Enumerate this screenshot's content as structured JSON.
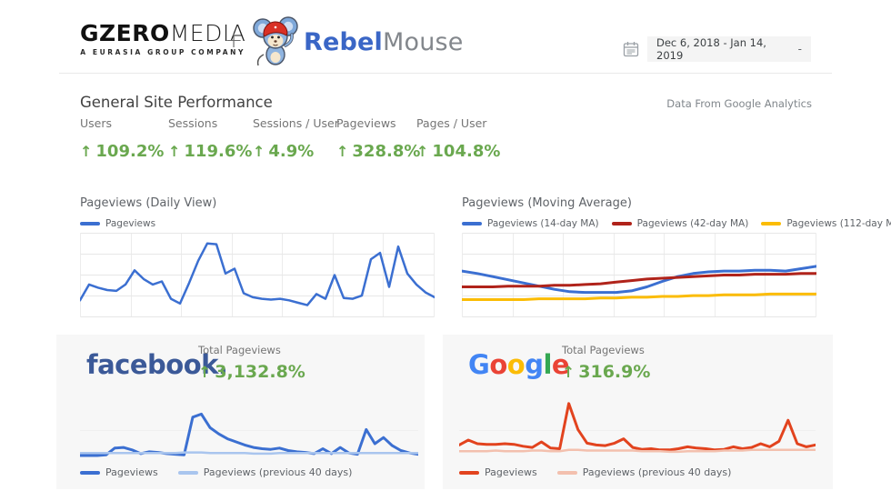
{
  "header": {
    "gzero_logo": {
      "bold": "GZERO",
      "light": "MEDIA",
      "subtitle": "A EURASIA GROUP COMPANY"
    },
    "plus_sign": "+",
    "rebelmouse_logo": {
      "bold": "Rebel",
      "light": "Mouse"
    },
    "date_picker": {
      "range": "Dec 6, 2018 - Jan 14, 2019",
      "dropdown_glyph": "-"
    }
  },
  "overview": {
    "title": "General Site Performance",
    "source_note": "Data From Google Analytics",
    "up_arrow": "↑",
    "positive_color": "#6aa84f",
    "metrics": [
      {
        "label": "Users",
        "value": "109.2%"
      },
      {
        "label": "Sessions",
        "value": "119.6%"
      },
      {
        "label": "Sessions / User",
        "value": "4.9%"
      },
      {
        "label": "Pageviews",
        "value": "328.8%"
      },
      {
        "label": "Pages / User",
        "value": "104.8%"
      }
    ]
  },
  "cards": {
    "facebook": {
      "logo_text": "facebook.",
      "logo_color": "#3b5998",
      "metric_label": "Total Pageviews",
      "metric_value": "3,132.8%"
    },
    "google": {
      "logo_letters": [
        {
          "ch": "G",
          "color": "#4285F4"
        },
        {
          "ch": "o",
          "color": "#EA4335"
        },
        {
          "ch": "o",
          "color": "#FBBC05"
        },
        {
          "ch": "g",
          "color": "#4285F4"
        },
        {
          "ch": "l",
          "color": "#34A853"
        },
        {
          "ch": "e",
          "color": "#EA4335"
        }
      ],
      "metric_label": "Total Pageviews",
      "metric_value": "316.9%"
    }
  },
  "chart_data": [
    {
      "id": "daily",
      "type": "line",
      "title": "Pageviews (Daily View)",
      "x_range": [
        "Dec 6, 2018",
        "Jan 14, 2019"
      ],
      "value_scale": "percent-of-plot-height (no axis labels shown)",
      "grid": {
        "cols": 7,
        "rows": 4
      },
      "legend_position": "top-left",
      "series": [
        {
          "name": "Pageviews",
          "color": "#3b6fd1",
          "width": 2.5,
          "values": [
            18,
            38,
            34,
            31,
            30,
            38,
            56,
            45,
            38,
            42,
            20,
            14,
            40,
            68,
            90,
            89,
            52,
            58,
            27,
            22,
            20,
            19,
            20,
            18,
            15,
            12,
            26,
            20,
            50,
            21,
            20,
            24,
            70,
            78,
            35,
            86,
            52,
            38,
            28,
            22
          ]
        }
      ]
    },
    {
      "id": "moving_average",
      "type": "line",
      "title": "Pageviews (Moving Average)",
      "x_range": [
        "Dec 6, 2018",
        "Jan 14, 2019"
      ],
      "value_scale": "percent-of-plot-height (no axis labels shown)",
      "grid": {
        "cols": 7,
        "rows": 4
      },
      "legend_position": "top-left",
      "series": [
        {
          "name": "Pageviews (14-day MA)",
          "color": "#3b6fd1",
          "width": 3,
          "values": [
            55,
            52,
            48,
            44,
            40,
            36,
            32,
            29,
            28,
            28,
            28,
            30,
            35,
            42,
            48,
            52,
            54,
            55,
            55,
            56,
            56,
            55,
            58,
            61
          ]
        },
        {
          "name": "Pageviews (42-day MA)",
          "color": "#b0231a",
          "width": 3,
          "values": [
            35,
            35,
            35,
            36,
            36,
            36,
            37,
            37,
            38,
            39,
            41,
            43,
            45,
            46,
            47,
            48,
            49,
            50,
            50,
            51,
            51,
            51,
            52,
            52
          ]
        },
        {
          "name": "Pageviews (112-day MA)",
          "color": "#fbbc04",
          "width": 3,
          "values": [
            19,
            19,
            19,
            19,
            19,
            20,
            20,
            20,
            20,
            21,
            21,
            22,
            22,
            23,
            23,
            24,
            24,
            25,
            25,
            25,
            26,
            26,
            26,
            26
          ]
        }
      ]
    },
    {
      "id": "facebook",
      "type": "line",
      "title": "Facebook Total Pageviews",
      "x_range": [
        "Dec 6, 2018",
        "Jan 14, 2019"
      ],
      "value_scale": "percent-of-plot-height (no axis labels shown)",
      "hlines": [
        45
      ],
      "legend_position": "bottom-left",
      "series": [
        {
          "name": "Pageviews",
          "color": "#3b6fd1",
          "width": 3,
          "values": [
            3,
            3,
            3,
            4,
            15,
            16,
            12,
            6,
            9,
            8,
            6,
            5,
            4,
            65,
            70,
            48,
            38,
            30,
            25,
            20,
            16,
            14,
            13,
            15,
            11,
            9,
            8,
            6,
            14,
            6,
            16,
            7,
            5,
            45,
            22,
            32,
            19,
            11,
            7,
            5
          ]
        },
        {
          "name": "Pageviews (previous 40 days)",
          "color": "#a9c5ee",
          "width": 2.5,
          "values": [
            7,
            7,
            7,
            7,
            7,
            7,
            7,
            7,
            7,
            7,
            7,
            7,
            8,
            8,
            8,
            7,
            7,
            7,
            7,
            7,
            6,
            6,
            6,
            7,
            7,
            7,
            7,
            7,
            7,
            7,
            7,
            7,
            7,
            7,
            7,
            7,
            7,
            7,
            7,
            7
          ]
        }
      ]
    },
    {
      "id": "google",
      "type": "line",
      "title": "Google Total Pageviews",
      "x_range": [
        "Dec 6, 2018",
        "Jan 14, 2019"
      ],
      "value_scale": "percent-of-plot-height (no axis labels shown)",
      "hlines": [
        45
      ],
      "legend_position": "bottom-left",
      "series": [
        {
          "name": "Pageviews",
          "color": "#e2431e",
          "width": 3,
          "values": [
            20,
            28,
            22,
            21,
            21,
            22,
            21,
            18,
            16,
            25,
            15,
            14,
            87,
            45,
            23,
            20,
            19,
            23,
            30,
            16,
            13,
            14,
            12,
            12,
            14,
            17,
            15,
            14,
            12,
            13,
            17,
            14,
            16,
            22,
            17,
            26,
            60,
            22,
            17,
            20
          ]
        },
        {
          "name": "Pageviews (previous 40 days)",
          "color": "#f3c0ae",
          "width": 2.5,
          "values": [
            10,
            10,
            10,
            10,
            11,
            10,
            10,
            10,
            11,
            11,
            10,
            10,
            12,
            12,
            11,
            11,
            11,
            11,
            11,
            11,
            10,
            10,
            10,
            9,
            9,
            10,
            10,
            10,
            10,
            11,
            11,
            11,
            12,
            12,
            12,
            12,
            12,
            12,
            12,
            12
          ]
        }
      ]
    }
  ]
}
